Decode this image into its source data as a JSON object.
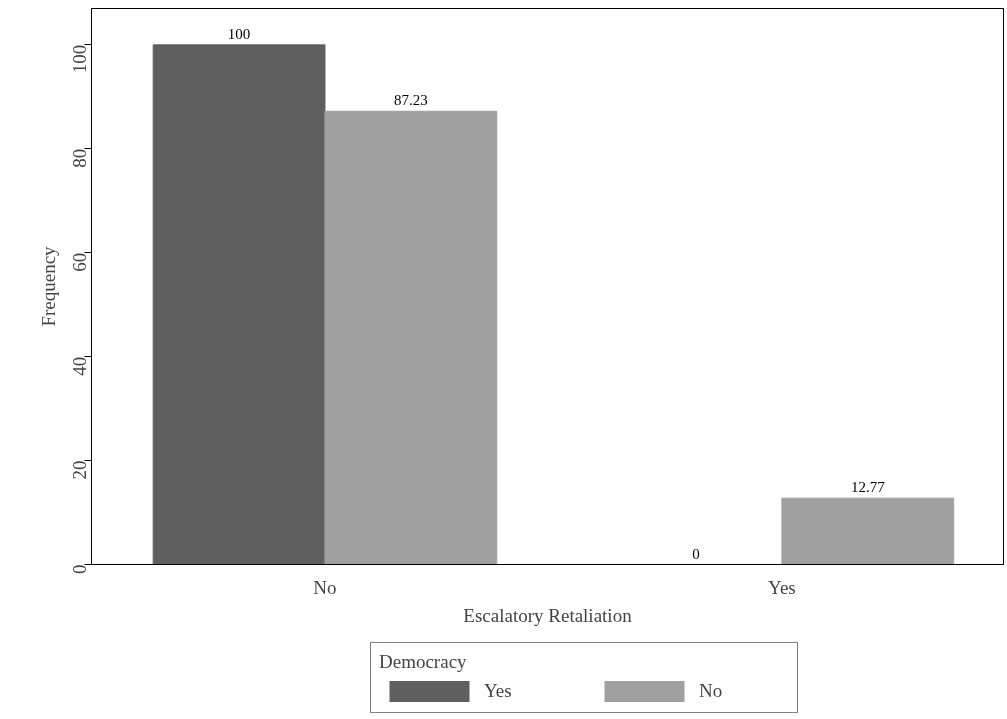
{
  "chart_data": {
    "type": "bar",
    "xlabel": "Escalatory Retaliation",
    "ylabel": "Frequency",
    "legend_title": "Democracy",
    "categories": [
      "No",
      "Yes"
    ],
    "series": [
      {
        "name": "Yes",
        "color": "#5f5f5f",
        "values": [
          100,
          0
        ]
      },
      {
        "name": "No",
        "color": "#a0a0a0",
        "values": [
          87.23,
          12.77
        ]
      }
    ],
    "ylim": [
      0,
      107
    ],
    "yticks": [
      0,
      20,
      40,
      60,
      80,
      100
    ],
    "grid": false,
    "legend": "bottom",
    "data_labels": true
  }
}
